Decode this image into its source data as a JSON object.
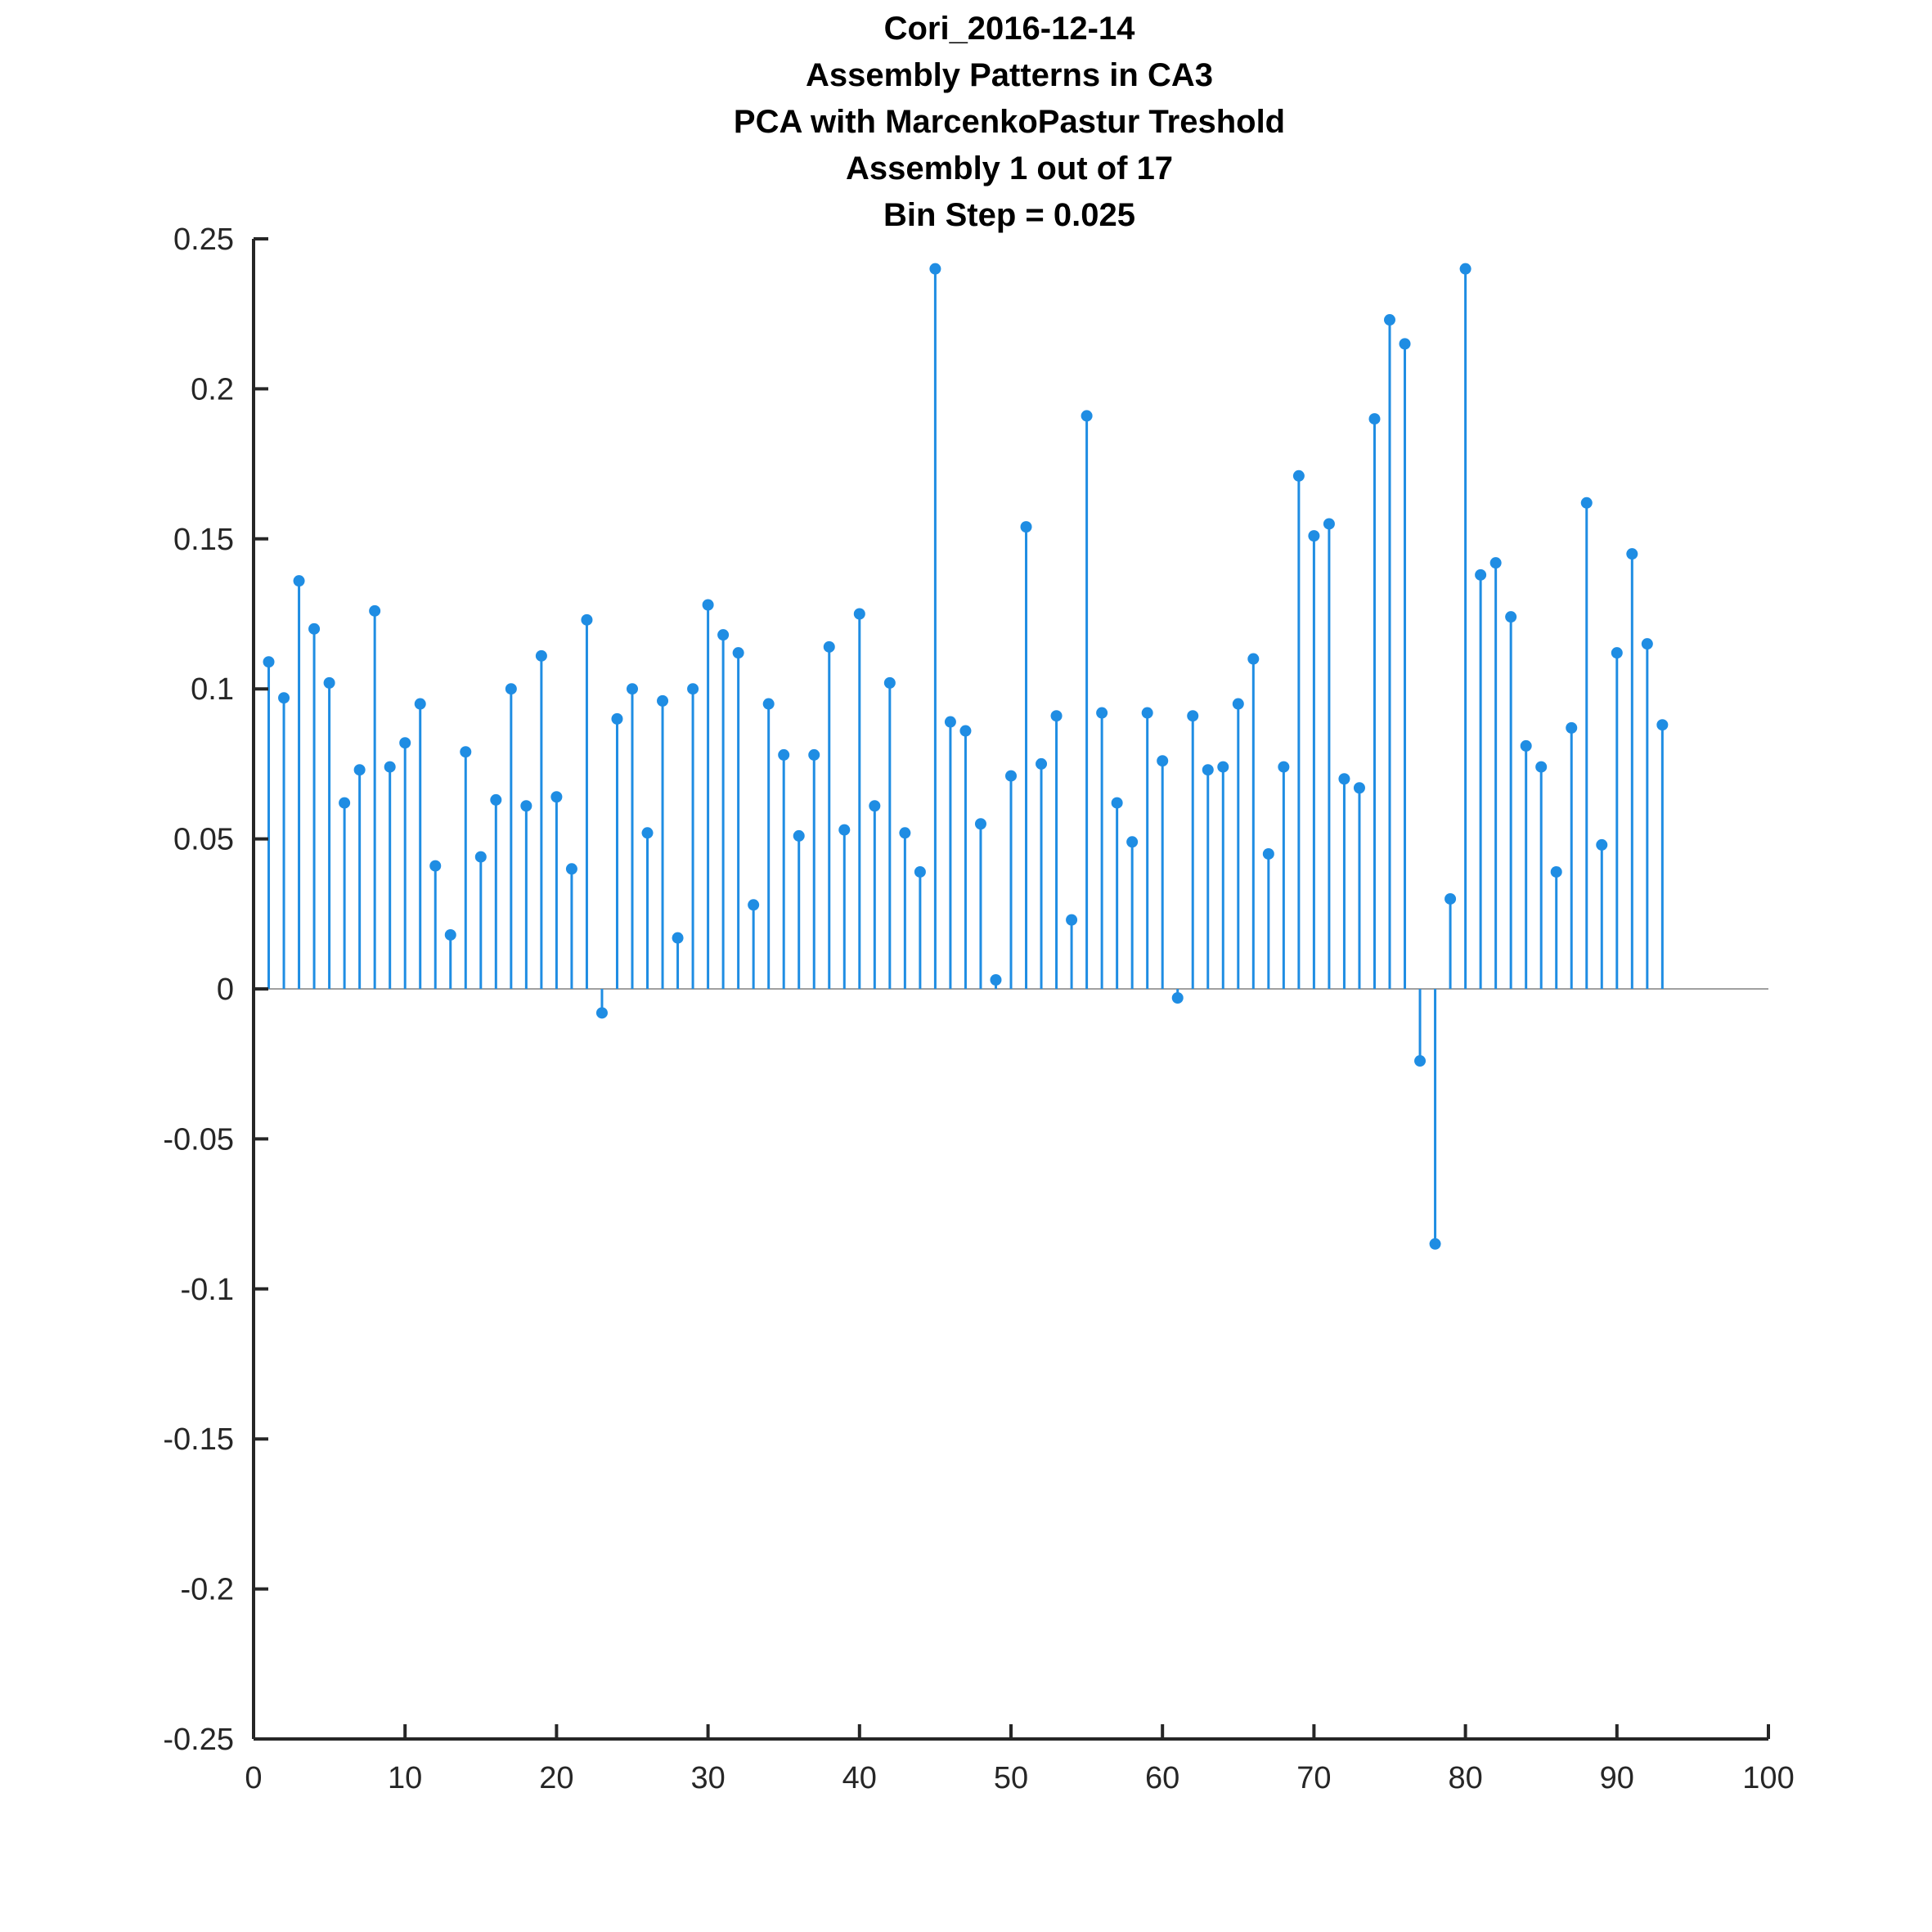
{
  "chart_data": {
    "type": "stem",
    "title_lines": [
      "Cori_2016-12-14",
      "Assembly Patterns in CA3",
      "PCA with MarcenkoPastur Treshold",
      "Assembly 1 out of 17",
      "Bin Step = 0.025"
    ],
    "xlabel": "",
    "ylabel": "",
    "xlim": [
      0,
      100
    ],
    "ylim": [
      -0.25,
      0.25
    ],
    "xticks": [
      0,
      10,
      20,
      30,
      40,
      50,
      60,
      70,
      80,
      90,
      100
    ],
    "xtick_labels": [
      "0",
      "10",
      "20",
      "30",
      "40",
      "50",
      "60",
      "70",
      "80",
      "90",
      "100"
    ],
    "yticks": [
      0.25,
      0.2,
      0.15,
      0.1,
      0.05,
      0,
      -0.05,
      -0.1,
      -0.15,
      -0.2,
      -0.25
    ],
    "ytick_labels": [
      "0.25",
      "0.2",
      "0.15",
      "0.1",
      "0.05",
      "0",
      "-0.05",
      "-0.1",
      "-0.15",
      "-0.2",
      "-0.25"
    ],
    "grid": false,
    "baseline": 0,
    "colors": {
      "stem": "#1f8de3",
      "axis": "#262626",
      "baseline": "#808080"
    },
    "x": [
      1,
      2,
      3,
      4,
      5,
      6,
      7,
      8,
      9,
      10,
      11,
      12,
      13,
      14,
      15,
      16,
      17,
      18,
      19,
      20,
      21,
      22,
      23,
      24,
      25,
      26,
      27,
      28,
      29,
      30,
      31,
      32,
      33,
      34,
      35,
      36,
      37,
      38,
      39,
      40,
      41,
      42,
      43,
      44,
      45,
      46,
      47,
      48,
      49,
      50,
      51,
      52,
      53,
      54,
      55,
      56,
      57,
      58,
      59,
      60,
      61,
      62,
      63,
      64,
      65,
      66,
      67,
      68,
      69,
      70,
      71,
      72,
      73,
      74,
      75,
      76,
      77,
      78,
      79,
      80,
      81,
      82,
      83,
      84,
      85,
      86,
      87,
      88,
      89,
      90,
      91,
      92,
      93
    ],
    "values": [
      0.109,
      0.097,
      0.136,
      0.12,
      0.102,
      0.062,
      0.073,
      0.126,
      0.074,
      0.082,
      0.095,
      0.041,
      0.018,
      0.079,
      0.044,
      0.063,
      0.1,
      0.061,
      0.111,
      0.064,
      0.04,
      0.123,
      -0.008,
      0.09,
      0.1,
      0.052,
      0.096,
      0.017,
      0.1,
      0.128,
      0.118,
      0.112,
      0.028,
      0.095,
      0.078,
      0.051,
      0.078,
      0.114,
      0.053,
      0.125,
      0.061,
      0.102,
      0.052,
      0.039,
      0.24,
      0.089,
      0.086,
      0.055,
      0.003,
      0.071,
      0.154,
      0.075,
      0.091,
      0.023,
      0.191,
      0.092,
      0.062,
      0.049,
      0.092,
      0.076,
      -0.003,
      0.091,
      0.073,
      0.074,
      0.095,
      0.11,
      0.045,
      0.074,
      0.171,
      0.151,
      0.155,
      0.07,
      0.067,
      0.19,
      0.223,
      0.215,
      -0.024,
      -0.085,
      0.03,
      0.24,
      0.138,
      0.142,
      0.124,
      0.081,
      0.074,
      0.039,
      0.087,
      0.162,
      0.048,
      0.112,
      0.145,
      0.115,
      0.088
    ]
  }
}
